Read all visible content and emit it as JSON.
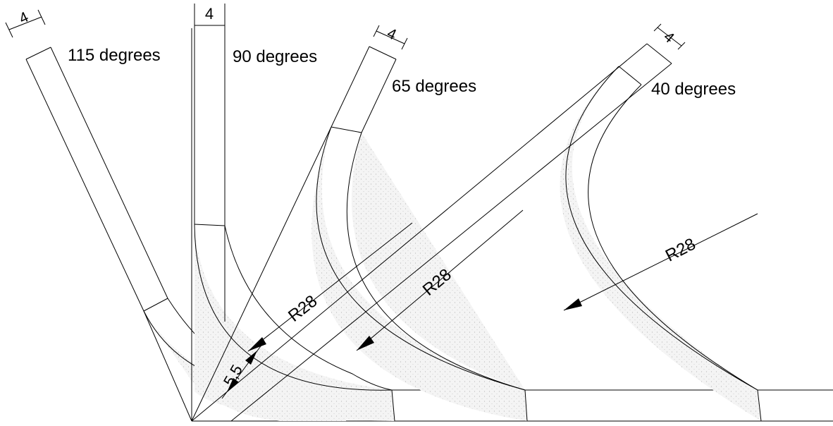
{
  "labels": {
    "angle_115": "115 degrees",
    "angle_90": "90 degrees",
    "angle_65": "65 degrees",
    "angle_40": "40 degrees"
  },
  "dimensions": {
    "width_115": "4",
    "width_90": "4",
    "width_65": "4",
    "width_40": "4",
    "radius_65": "R28",
    "radius_40": "R28",
    "radius_right": "R28",
    "offset": "5,5"
  },
  "colors": {
    "line": "#000000",
    "fill": "#eeeeee",
    "background": "#ffffff"
  }
}
